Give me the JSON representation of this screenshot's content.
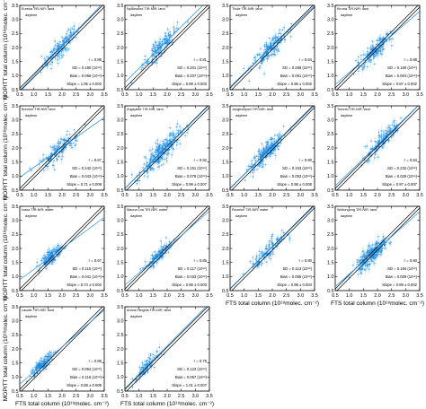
{
  "chart_data": {
    "type": "scatter",
    "layout": {
      "rows": 4,
      "cols": 4
    },
    "xlabel": "FTS total column (10¹⁸molec. cm⁻²)",
    "ylabel": "MOPITT total column (10¹⁸molec. cm⁻²)",
    "xlim": [
      0.5,
      3.5
    ],
    "ylim": [
      0.5,
      3.5
    ],
    "xticks": [
      "0.5",
      "1.0",
      "1.5",
      "2.0",
      "2.5",
      "3.0",
      "3.5"
    ],
    "yticks": [
      "0.5",
      "1.0",
      "1.5",
      "2.0",
      "2.5",
      "3.0",
      "3.5"
    ],
    "colors": {
      "points": "#1e8fe6",
      "one_to_one": "#000000",
      "fit": "#1e8fe6",
      "frame": "#000000"
    },
    "panels": [
      {
        "station": "Eureka TIR-NIR: land",
        "period": "daytime",
        "r": "0.86",
        "sd": "0.180",
        "bias": "0.068",
        "slope": "1.05 ± 0.002",
        "center": [
          1.95,
          2.0
        ],
        "spread": 0.32,
        "n": 140,
        "fit_slope": 1.05
      },
      {
        "station": "NyÅlesund TIR-NIR: land",
        "period": "daytime",
        "r": "0.81",
        "sd": "0.201",
        "bias": "0.207",
        "slope": "0.99 ± 0.003",
        "center": [
          1.75,
          2.0
        ],
        "spread": 0.3,
        "n": 140,
        "fit_slope": 0.99
      },
      {
        "station": "Thule TIR-NIR: land",
        "period": "daytime",
        "r": "0.84",
        "sd": "0.258",
        "bias": "0.061",
        "slope": "0.96 ± 0.002",
        "center": [
          1.9,
          1.95
        ],
        "spread": 0.32,
        "n": 150,
        "fit_slope": 0.96
      },
      {
        "station": "Kiruna TIR-NIR: land",
        "period": "daytime",
        "r": "0.88",
        "sd": "0.160",
        "bias": "0.004",
        "slope": "0.87 ± 0.002",
        "center": [
          1.9,
          1.9
        ],
        "spread": 0.3,
        "n": 150,
        "fit_slope": 0.87
      },
      {
        "station": "Bremen TIR-NIR: land",
        "period": "daytime",
        "r": "0.67",
        "sd": "0.242",
        "bias": "0.043",
        "slope": "0.71 ± 0.008",
        "center": [
          1.9,
          1.95
        ],
        "spread": 0.35,
        "n": 130,
        "fit_slope": 0.71
      },
      {
        "station": "Zugspitze TIR-NIR: land",
        "period": "daytime",
        "r": "0.92",
        "sd": "0.151",
        "bias": "0.078",
        "slope": "0.99 ± 0.007",
        "center": [
          1.8,
          1.85
        ],
        "spread": 0.35,
        "n": 260,
        "fit_slope": 0.99
      },
      {
        "station": "Jungfraujoch TIR-NIR: land",
        "period": "daytime",
        "r": "0.90",
        "sd": "0.153",
        "bias": "0.053",
        "slope": "0.98 ± 0.006",
        "center": [
          1.8,
          1.85
        ],
        "spread": 0.3,
        "n": 200,
        "fit_slope": 0.98
      },
      {
        "station": "Toronto TIR-NIR: land",
        "period": "daytime",
        "r": "0.84",
        "sd": "0.232",
        "bias": "0.029",
        "slope": "0.97 ± 0.007",
        "center": [
          2.2,
          2.3
        ],
        "spread": 0.3,
        "n": 140,
        "fit_slope": 0.97
      },
      {
        "station": "Izana TIR-NIR: water",
        "period": "daytime",
        "r": "0.67",
        "sd": "0.115",
        "bias": "0.041",
        "slope": "0.74 ± 0.002",
        "center": [
          1.6,
          1.7
        ],
        "spread": 0.2,
        "n": 130,
        "fit_slope": 0.74
      },
      {
        "station": "Mauna Loa TIR-NIR: water",
        "period": "daytime",
        "r": "0.85",
        "sd": "0.117",
        "bias": "0.033",
        "slope": "0.88 ± 0.003",
        "center": [
          1.7,
          1.75
        ],
        "spread": 0.22,
        "n": 110,
        "fit_slope": 0.88
      },
      {
        "station": "Reunion TIR-NIR: water",
        "period": "daytime",
        "r": "0.80",
        "sd": "0.113",
        "bias": "0.055",
        "slope": "0.98 ± 0.004",
        "center": [
          1.9,
          1.95
        ],
        "spread": 0.3,
        "n": 110,
        "fit_slope": 0.98
      },
      {
        "station": "Wollongong TIR-NIR: land",
        "period": "daytime",
        "r": "0.80",
        "sd": "0.184",
        "bias": "0.009",
        "slope": "0.89 ± 0.002",
        "center": [
          1.8,
          1.8
        ],
        "spread": 0.28,
        "n": 240,
        "fit_slope": 0.89
      },
      {
        "station": "Lauder TIR-NIR: land",
        "period": "daytime",
        "r": "0.86",
        "sd": "0.094",
        "bias": "0.116",
        "slope": "0.88 ± 0.009",
        "center": [
          1.3,
          1.45
        ],
        "spread": 0.2,
        "n": 120,
        "fit_slope": 0.88
      },
      {
        "station": "Arrival Heights TIR-NIR: land",
        "period": "daytime",
        "r": "0.75",
        "sd": "0.123",
        "bias": "0.057",
        "slope": "1.01 ± 0.007",
        "center": [
          1.25,
          1.35
        ],
        "spread": 0.2,
        "n": 90,
        "fit_slope": 1.01
      }
    ]
  }
}
